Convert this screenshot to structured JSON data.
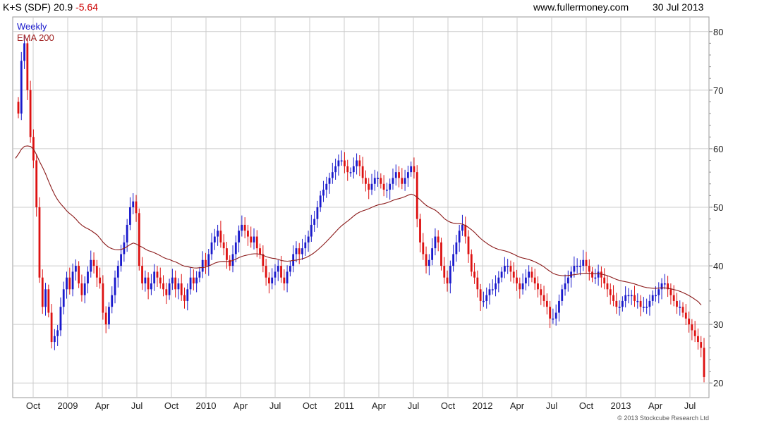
{
  "header": {
    "ticker": "K+S (SDF) 20.9",
    "change": "-5.64",
    "website": "www.fullermoney.com",
    "date": "30 Jul 2013"
  },
  "legend": {
    "period": "Weekly",
    "indicator": "EMA 200"
  },
  "copyright": "© 2013 Stockcube Research Ltd",
  "colors": {
    "up": "#1a1acc",
    "down": "#dd1111",
    "ema": "#8b1a1a",
    "grid": "#cccccc"
  },
  "chart_data": {
    "type": "candlestick",
    "title": "K+S (SDF)",
    "last": 20.9,
    "change": -5.64,
    "y_ticks": [
      20,
      30,
      40,
      50,
      60,
      70,
      80
    ],
    "ylim": [
      17.5,
      82.5
    ],
    "x_labels": [
      "Oct",
      "2009",
      "Apr",
      "Jul",
      "Oct",
      "2010",
      "Apr",
      "Jul",
      "Oct",
      "2011",
      "Apr",
      "Jul",
      "Oct",
      "2012",
      "Apr",
      "Jul",
      "Oct",
      "2013",
      "Apr",
      "Jul"
    ],
    "close_series": [
      66,
      75,
      78,
      70,
      62,
      58,
      50,
      38,
      33,
      36,
      32,
      27,
      28,
      29,
      33,
      36,
      38,
      36,
      39,
      40,
      37,
      35,
      37,
      39,
      41,
      40,
      38,
      37,
      32,
      30,
      33,
      35,
      38,
      40,
      42,
      44,
      47,
      50,
      51,
      49,
      40,
      37,
      38,
      36,
      37,
      39,
      38,
      37,
      36,
      35,
      37,
      38,
      36,
      37,
      35,
      34,
      36,
      38,
      37,
      38,
      39,
      41,
      40,
      42,
      44,
      45,
      46,
      44,
      43,
      41,
      40,
      42,
      44,
      46,
      47,
      46,
      45,
      44,
      45,
      43,
      42,
      40,
      38,
      37,
      38,
      39,
      40,
      38,
      37,
      39,
      40,
      42,
      43,
      42,
      43,
      44,
      45,
      47,
      48,
      50,
      52,
      53,
      54,
      55,
      56,
      57,
      58,
      58,
      57,
      56,
      56,
      57,
      58,
      57,
      55,
      54,
      53,
      54,
      55,
      55,
      54,
      53,
      53,
      54,
      55,
      56,
      55,
      54,
      55,
      56,
      57,
      56,
      48,
      44,
      42,
      40,
      41,
      43,
      45,
      44,
      40,
      38,
      37,
      40,
      42,
      44,
      46,
      47,
      45,
      42,
      39,
      38,
      36,
      34,
      34,
      35,
      36,
      36,
      37,
      38,
      39,
      40,
      40,
      39,
      38,
      37,
      36,
      37,
      38,
      39,
      38,
      37,
      36,
      35,
      34,
      33,
      31,
      31,
      32,
      34,
      36,
      37,
      38,
      39,
      40,
      40,
      40,
      41,
      40,
      39,
      38,
      38,
      39,
      38,
      37,
      36,
      35,
      34,
      33,
      33,
      34,
      35,
      35,
      35,
      34,
      34,
      33,
      33,
      33,
      34,
      35,
      35,
      36,
      37,
      37,
      36,
      35,
      34,
      33,
      33,
      32,
      31,
      30,
      29,
      28,
      27,
      26,
      21
    ]
  }
}
